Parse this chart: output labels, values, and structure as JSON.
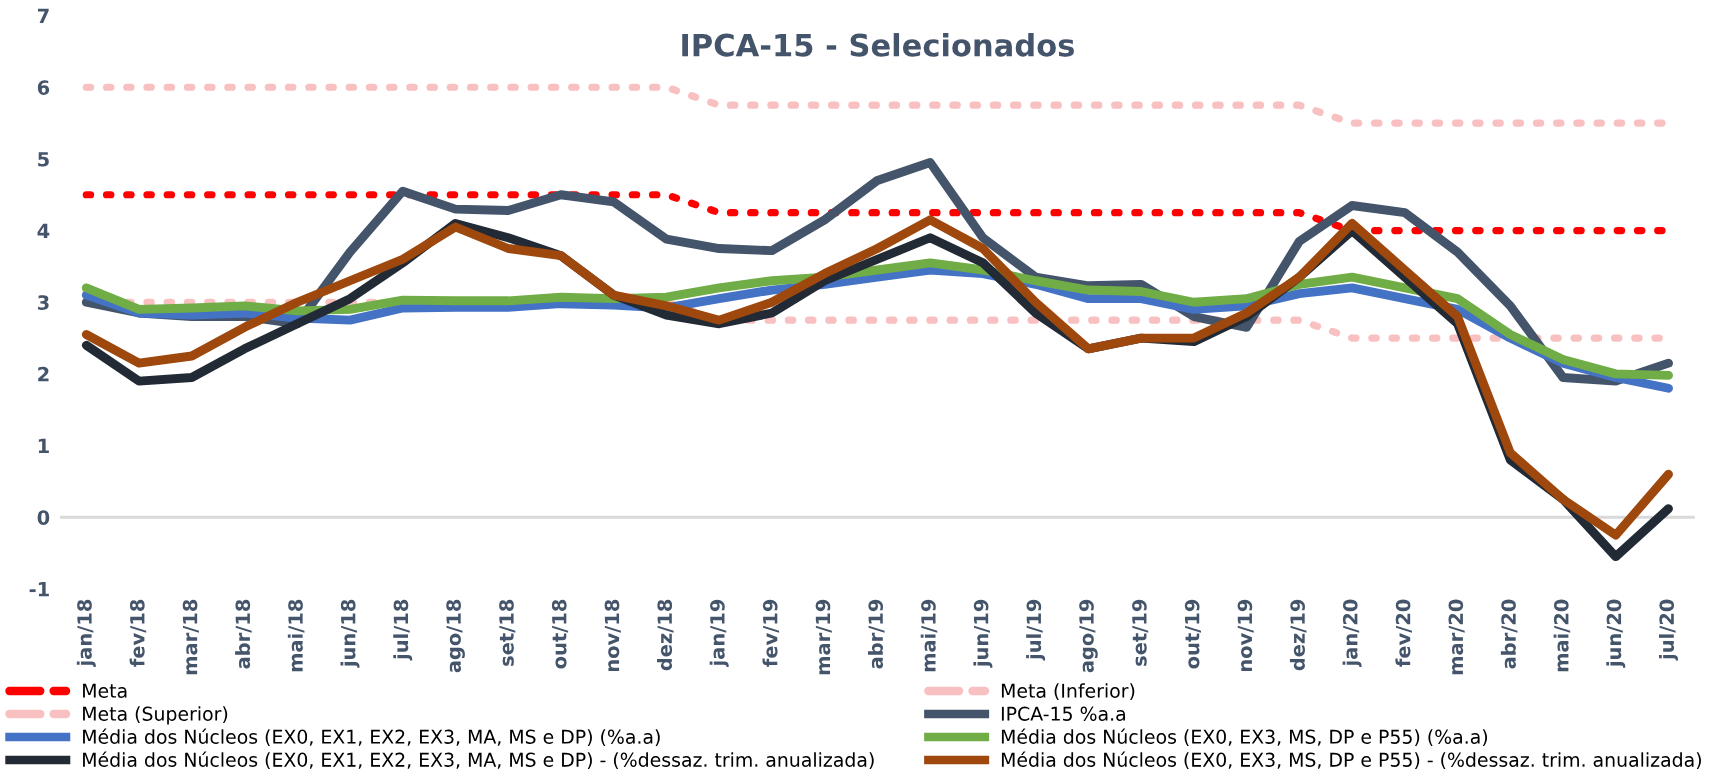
{
  "chart_data": {
    "type": "line",
    "title": "IPCA-15 - Selecionados",
    "categories": [
      "jan/18",
      "fev/18",
      "mar/18",
      "abr/18",
      "mai/18",
      "jun/18",
      "jul/18",
      "ago/18",
      "set/18",
      "out/18",
      "nov/18",
      "dez/18",
      "jan/19",
      "fev/19",
      "mar/19",
      "abr/19",
      "mai/19",
      "jun/19",
      "jul/19",
      "ago/19",
      "set/19",
      "out/19",
      "nov/19",
      "dez/19",
      "jan/20",
      "fev/20",
      "mar/20",
      "abr/20",
      "mai/20",
      "jun/20",
      "jul/20"
    ],
    "series": [
      {
        "name": "Meta",
        "color": "#ff0000",
        "line_style": "dotted",
        "values": [
          4.5,
          4.5,
          4.5,
          4.5,
          4.5,
          4.5,
          4.5,
          4.5,
          4.5,
          4.5,
          4.5,
          4.5,
          4.25,
          4.25,
          4.25,
          4.25,
          4.25,
          4.25,
          4.25,
          4.25,
          4.25,
          4.25,
          4.25,
          4.25,
          4.0,
          4.0,
          4.0,
          4.0,
          4.0,
          4.0,
          4.0
        ]
      },
      {
        "name": "Meta (Inferior)",
        "color": "#f8c0c0",
        "line_style": "dotted",
        "values": [
          3.0,
          3.0,
          3.0,
          3.0,
          3.0,
          3.0,
          3.0,
          null,
          3.0,
          3.0,
          3.0,
          3.0,
          2.75,
          2.75,
          2.75,
          2.75,
          2.75,
          2.75,
          2.75,
          2.75,
          2.75,
          2.75,
          2.75,
          2.75,
          2.5,
          2.5,
          2.5,
          2.5,
          2.5,
          2.5,
          2.5
        ]
      },
      {
        "name": "Meta (Superior)",
        "color": "#f8c0c0",
        "line_style": "dotted",
        "values": [
          6.0,
          6.0,
          6.0,
          6.0,
          6.0,
          6.0,
          6.0,
          6.0,
          6.0,
          6.0,
          6.0,
          6.0,
          5.75,
          5.75,
          5.75,
          5.75,
          5.75,
          5.75,
          5.75,
          5.75,
          5.75,
          5.75,
          5.75,
          5.75,
          5.5,
          5.5,
          5.5,
          5.5,
          5.5,
          5.5,
          5.5
        ]
      },
      {
        "name": "IPCA-15 %a.a",
        "color": "#44546a",
        "line_style": "solid",
        "values": [
          3.0,
          2.85,
          2.8,
          2.8,
          2.7,
          3.7,
          4.55,
          4.3,
          4.28,
          4.5,
          4.4,
          3.88,
          3.75,
          3.72,
          4.15,
          4.7,
          4.95,
          3.9,
          3.35,
          3.23,
          3.25,
          2.8,
          2.65,
          3.85,
          4.35,
          4.25,
          3.7,
          2.95,
          1.95,
          1.9,
          2.15
        ]
      },
      {
        "name": "Média dos Núcleos (EX0, EX1, EX2, EX3, MA, MS e DP) (%a.a)",
        "color": "#4472c4",
        "line_style": "solid",
        "values": [
          3.1,
          2.85,
          2.82,
          2.85,
          2.78,
          2.75,
          2.92,
          2.93,
          2.93,
          2.98,
          2.96,
          2.92,
          3.05,
          3.17,
          3.25,
          3.35,
          3.45,
          3.4,
          3.25,
          3.05,
          3.05,
          2.9,
          2.95,
          3.12,
          3.2,
          3.05,
          2.9,
          2.5,
          2.15,
          1.95,
          1.8
        ]
      },
      {
        "name": "Média dos Núcleos (EX0, EX3, MS, DP e P55) (%a.a)",
        "color": "#70ad47",
        "line_style": "solid",
        "values": [
          3.2,
          2.9,
          2.92,
          2.95,
          2.88,
          2.9,
          3.03,
          3.02,
          3.02,
          3.07,
          3.05,
          3.07,
          3.2,
          3.3,
          3.35,
          3.45,
          3.55,
          3.45,
          3.3,
          3.17,
          3.15,
          3.0,
          3.05,
          3.25,
          3.35,
          3.2,
          3.05,
          2.55,
          2.2,
          2.0,
          1.98
        ]
      },
      {
        "name": "Média dos Núcleos (EX0, EX1, EX2, EX3, MA, MS e DP) - (%dessaz. trim. anualizada)",
        "color": "#222a35",
        "line_style": "solid",
        "values": [
          2.4,
          1.9,
          1.95,
          2.35,
          2.7,
          3.05,
          3.55,
          4.1,
          3.9,
          3.65,
          3.1,
          2.82,
          2.7,
          2.85,
          3.3,
          3.6,
          3.9,
          3.55,
          2.85,
          2.35,
          2.5,
          2.45,
          2.8,
          3.35,
          4.0,
          3.35,
          2.7,
          0.8,
          0.25,
          -0.55,
          0.12
        ]
      },
      {
        "name": "Média dos Núcleos (EX0, EX3, MS, DP e P55) - (%dessaz. trim. anualizada)",
        "color": "#9e480e",
        "line_style": "solid",
        "values": [
          2.55,
          2.15,
          2.25,
          2.65,
          3.0,
          3.3,
          3.6,
          4.05,
          3.75,
          3.65,
          3.1,
          2.95,
          2.75,
          3.0,
          3.4,
          3.75,
          4.15,
          3.75,
          3.0,
          2.35,
          2.5,
          2.5,
          2.85,
          3.35,
          4.1,
          3.45,
          2.8,
          0.9,
          0.25,
          -0.25,
          0.6
        ]
      }
    ],
    "ylim": [
      -1,
      7
    ],
    "yticks": [
      -1,
      0,
      1,
      2,
      3,
      4,
      5,
      6,
      7
    ],
    "ref_lines": [
      {
        "axis": "y",
        "value": 0,
        "color": "#d9d9d9"
      }
    ],
    "grid": false,
    "legend": "bottom",
    "marker": "none"
  }
}
